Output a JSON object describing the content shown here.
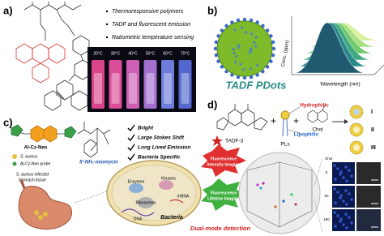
{
  "panels": {
    "a": "a)",
    "b": "b)",
    "c": "c)",
    "d": "d)"
  },
  "panel_a": {
    "bullets": [
      "Thermoresponsive polymers",
      "TADF and fluorescent emission",
      "Ratiometric temperature sensing"
    ],
    "temperatures": [
      "20°C",
      "30°C",
      "40°C",
      "50°C",
      "60°C",
      "70°C"
    ]
  },
  "panel_b": {
    "title": "TADF PDots",
    "x_axis": "Wavelength (nm)",
    "y_axis": "Conc. (ppm)"
  },
  "panel_c": {
    "probe": "Al-Cz-Neo",
    "legend": [
      "S. aureus",
      "Al-Cz-Neo probe"
    ],
    "tissue": [
      "S. aureus infected",
      "Stomach tissue"
    ],
    "neomycin": "5'-NH₂-neomycin",
    "features": [
      "Bright",
      "Large Stokes Shift",
      "Long Lived Emission",
      "Bacteria Specific"
    ],
    "cell_labels": [
      "Enzymes",
      "Kinases",
      "Ribosomes",
      "DNA",
      "mRNA",
      "Bacteria"
    ],
    "intensity": [
      "Fluorescence",
      "Intensity Imaging"
    ],
    "lifetime": [
      "Fluorescence",
      "Lifetime Imaging"
    ],
    "conclusion": "Dual-mode detection"
  },
  "panel_d": {
    "compound": "TADF-3",
    "carrier": "PLs",
    "additive": "Chol",
    "hydrophilic": "Hydrophilic",
    "lipophilic": "Lipophilic",
    "phases": [
      "I",
      "II",
      "III"
    ],
    "grid_header": "Chol",
    "grid_rows": [
      "0",
      "50",
      "100"
    ]
  }
}
